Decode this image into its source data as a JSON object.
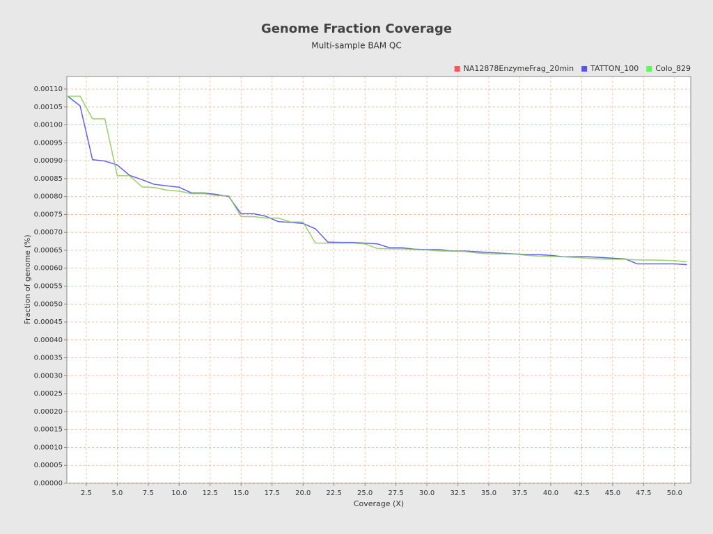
{
  "chart_data": {
    "type": "line",
    "title": "Genome Fraction Coverage",
    "subtitle": "Multi-sample BAM QC",
    "x_label": "Coverage (X)",
    "y_label": "Fraction of genome (%)",
    "grid": true,
    "legend": "top-right",
    "xlim": [
      0.93,
      51.3
    ],
    "ylim": [
      0,
      0.001135
    ],
    "xticks": [
      2.5,
      {
        "value": 5,
        "label": "5.0"
      },
      7.5,
      {
        "value": 10,
        "label": "10.0"
      },
      12.5,
      {
        "value": 15,
        "label": "15.0"
      },
      17.5,
      {
        "value": 20,
        "label": "20.0"
      },
      22.5,
      {
        "value": 25,
        "label": "25.0"
      },
      27.5,
      {
        "value": 30,
        "label": "30.0"
      },
      32.5,
      {
        "value": 35,
        "label": "35.0"
      },
      37.5,
      {
        "value": 40,
        "label": "40.0"
      },
      42.5,
      {
        "value": 45,
        "label": "45.0"
      },
      47.5,
      {
        "value": 50,
        "label": "50.0"
      }
    ],
    "yticks": [
      {
        "value": 0,
        "label": "0.00000"
      },
      {
        "value": 5e-05,
        "label": "0.00005"
      },
      {
        "value": 0.0001,
        "label": "0.00010"
      },
      {
        "value": 0.00015,
        "label": "0.00015"
      },
      {
        "value": 0.0002,
        "label": "0.00020"
      },
      {
        "value": 0.00025,
        "label": "0.00025"
      },
      {
        "value": 0.0003,
        "label": "0.00030"
      },
      {
        "value": 0.00035,
        "label": "0.00035"
      },
      {
        "value": 0.0004,
        "label": "0.00040"
      },
      {
        "value": 0.00045,
        "label": "0.00045"
      },
      {
        "value": 0.0005,
        "label": "0.00050"
      },
      {
        "value": 0.00055,
        "label": "0.00055"
      },
      {
        "value": 0.0006,
        "label": "0.00060"
      },
      {
        "value": 0.00065,
        "label": "0.00065"
      },
      {
        "value": 0.0007,
        "label": "0.00070"
      },
      {
        "value": 0.00075,
        "label": "0.00075"
      },
      {
        "value": 0.0008,
        "label": "0.00080"
      },
      {
        "value": 0.00085,
        "label": "0.00085"
      },
      {
        "value": 0.0009,
        "label": "0.00090"
      },
      {
        "value": 0.00095,
        "label": "0.00095"
      },
      {
        "value": 0.001,
        "label": "0.00100"
      },
      {
        "value": 0.00105,
        "label": "0.00105"
      },
      {
        "value": 0.0011,
        "label": "0.00110"
      }
    ],
    "x": [
      1,
      2,
      3,
      4,
      5,
      6,
      7,
      8,
      9,
      10,
      11,
      12,
      13,
      14,
      15,
      16,
      17,
      18,
      19,
      20,
      21,
      22,
      23,
      24,
      25,
      26,
      27,
      28,
      29,
      30,
      31,
      32,
      33,
      34,
      35,
      36,
      37,
      38,
      39,
      40,
      41,
      42,
      43,
      44,
      45,
      46,
      47,
      48,
      49,
      50,
      51
    ],
    "series": [
      {
        "name": "NA12878EnzymeFrag_20min",
        "color": "#ff5555",
        "values": [
          0.00108,
          0.00108,
          0.001017,
          0.001017,
          0.000858,
          0.000858,
          0.000827,
          0.000825,
          0.000818,
          0.000815,
          0.000808,
          0.000808,
          0.000803,
          0.000802,
          0.000744,
          0.000744,
          0.00074,
          0.00074,
          0.000729,
          0.000729,
          0.00067,
          0.00067,
          0.00067,
          0.00067,
          0.000668,
          0.000655,
          0.000654,
          0.000654,
          0.000652,
          0.000651,
          0.000648,
          0.000648,
          0.000647,
          0.000643,
          0.00064,
          0.00064,
          0.00064,
          0.000636,
          0.000634,
          0.000633,
          0.000632,
          0.00063,
          0.000628,
          0.000626,
          0.000625,
          0.000625,
          0.000623,
          0.000623,
          0.000622,
          0.000621,
          0.000618
        ]
      },
      {
        "name": "TATTON_100",
        "color": "#5555ff",
        "values": [
          0.00108,
          0.001053,
          0.000903,
          0.000899,
          0.000888,
          0.000859,
          0.000847,
          0.000834,
          0.00083,
          0.000826,
          0.00081,
          0.00081,
          0.000806,
          0.0008,
          0.000752,
          0.000752,
          0.000745,
          0.00073,
          0.000728,
          0.000725,
          0.00071,
          0.000673,
          0.000672,
          0.000672,
          0.00067,
          0.000668,
          0.000657,
          0.000657,
          0.000653,
          0.000652,
          0.000652,
          0.000648,
          0.000648,
          0.000646,
          0.000644,
          0.000642,
          0.00064,
          0.000638,
          0.000638,
          0.000636,
          0.000632,
          0.000632,
          0.000632,
          0.00063,
          0.000628,
          0.000626,
          0.000612,
          0.000612,
          0.000612,
          0.000612,
          0.00061
        ]
      },
      {
        "name": "Colo_829",
        "color": "#55ff55",
        "values": [
          0.00108,
          0.00108,
          0.001017,
          0.001017,
          0.000858,
          0.000858,
          0.000827,
          0.000825,
          0.000818,
          0.000815,
          0.000808,
          0.000808,
          0.000803,
          0.000802,
          0.000744,
          0.000744,
          0.00074,
          0.00074,
          0.000729,
          0.000729,
          0.00067,
          0.00067,
          0.00067,
          0.00067,
          0.000668,
          0.000655,
          0.000654,
          0.000654,
          0.000652,
          0.000651,
          0.000648,
          0.000648,
          0.000647,
          0.000643,
          0.00064,
          0.00064,
          0.00064,
          0.000636,
          0.000634,
          0.000633,
          0.000632,
          0.00063,
          0.000628,
          0.000626,
          0.000625,
          0.000625,
          0.000623,
          0.000623,
          0.000622,
          0.000621,
          0.000618
        ]
      }
    ]
  }
}
